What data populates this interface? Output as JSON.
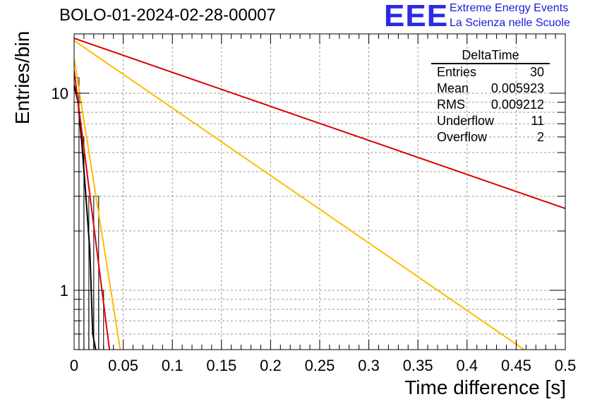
{
  "header": {
    "title": "BOLO-01-2024-02-28-00007",
    "logo_text": "EEE",
    "logo_line1": "Extreme Energy Events",
    "logo_line2": "La Scienza nelle Scuole"
  },
  "stats_box": {
    "title": "DeltaTime",
    "rows": [
      {
        "label": "Entries",
        "value": "30"
      },
      {
        "label": "Mean",
        "value": "0.005923"
      },
      {
        "label": "RMS",
        "value": "0.009212"
      },
      {
        "label": "Underflow",
        "value": "11"
      },
      {
        "label": "Overflow",
        "value": "2"
      }
    ]
  },
  "chart_data": {
    "type": "line",
    "xlabel": "Time difference [s]",
    "ylabel": "Entries/bin",
    "xlim": [
      0,
      0.5
    ],
    "ylim": [
      0.5,
      20
    ],
    "log_y": true,
    "grid": true,
    "x_ticks": [
      "0",
      "0.05",
      "0.1",
      "0.15",
      "0.2",
      "0.25",
      "0.3",
      "0.35",
      "0.4",
      "0.45",
      "0.5"
    ],
    "y_ticks": [
      "1",
      "10"
    ],
    "histogram": {
      "bin_width": 0.005,
      "bins": [
        {
          "x0": 0.0,
          "x1": 0.005,
          "y": 12
        },
        {
          "x0": 0.005,
          "x1": 0.01,
          "y": 6
        },
        {
          "x0": 0.01,
          "x1": 0.015,
          "y": 3
        },
        {
          "x0": 0.015,
          "x1": 0.02,
          "y": 1
        },
        {
          "x0": 0.02,
          "x1": 0.025,
          "y": 3
        },
        {
          "x0": 0.025,
          "x1": 0.03,
          "y": 1
        }
      ]
    },
    "curves": [
      {
        "color": "#000000",
        "points": [
          [
            0.0,
            11
          ],
          [
            0.004,
            9
          ],
          [
            0.008,
            5.5
          ],
          [
            0.012,
            3
          ],
          [
            0.016,
            1.6
          ],
          [
            0.019,
            0.6
          ],
          [
            0.022,
            0.5
          ]
        ]
      },
      {
        "color": "#dd0000",
        "points": [
          [
            0.0,
            13
          ],
          [
            0.036,
            0.5
          ]
        ]
      },
      {
        "color": "#ffbb00",
        "points": [
          [
            0.0,
            15
          ],
          [
            0.047,
            0.5
          ]
        ]
      },
      {
        "color": "#ffbb00",
        "points": [
          [
            0.0,
            18.5
          ],
          [
            0.458,
            0.5
          ]
        ]
      },
      {
        "color": "#dd0000",
        "points": [
          [
            0.0,
            19
          ],
          [
            0.5,
            2.6
          ]
        ]
      }
    ]
  }
}
